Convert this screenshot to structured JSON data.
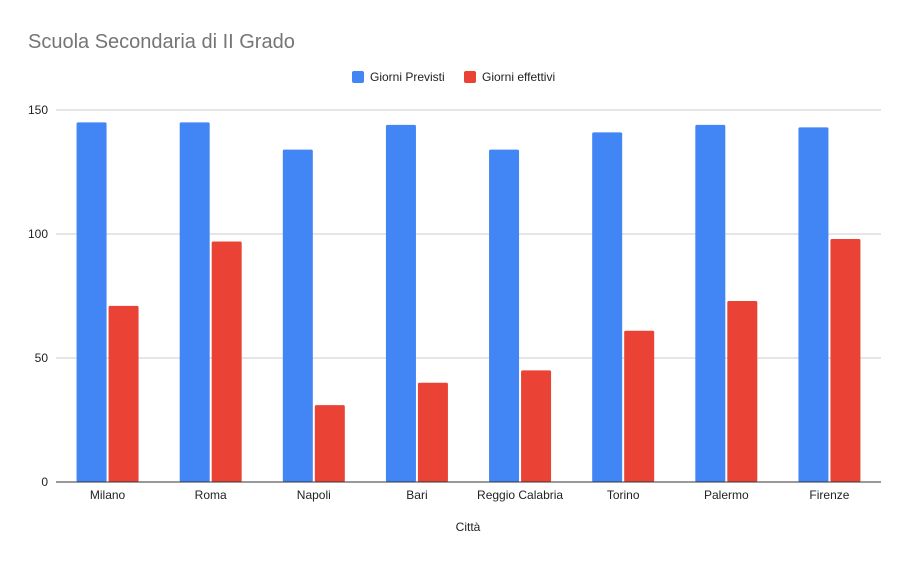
{
  "chart_data": {
    "type": "bar",
    "title": "Scuola Secondaria di II Grado",
    "xlabel": "Città",
    "ylabel": "",
    "categories": [
      "Milano",
      "Roma",
      "Napoli",
      "Bari",
      "Reggio Calabria",
      "Torino",
      "Palermo",
      "Firenze"
    ],
    "series": [
      {
        "name": "Giorni Previsti",
        "color": "#4285f4",
        "values": [
          145,
          145,
          134,
          144,
          134,
          141,
          144,
          143
        ]
      },
      {
        "name": "Giorni effettivi",
        "color": "#ea4335",
        "values": [
          71,
          97,
          31,
          40,
          45,
          61,
          73,
          98
        ]
      }
    ],
    "ylim": [
      0,
      150
    ],
    "yticks": [
      "0",
      "50",
      "100",
      "150"
    ],
    "grid": true,
    "legend_position": "top"
  }
}
